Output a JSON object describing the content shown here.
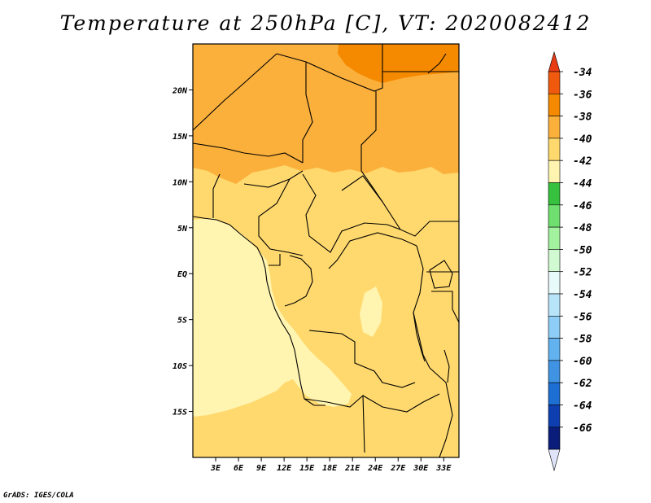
{
  "title": "Temperature at 250hPa [C], VT: 2020082412",
  "credit": "GrADS: IGES/COLA",
  "chart_data": {
    "type": "heatmap",
    "title": "Temperature at 250hPa [C], VT: 2020082412",
    "variable": "Temperature",
    "level": "250hPa",
    "units": "C",
    "valid_time": "2020082412",
    "lon_range": [
      0,
      35
    ],
    "lat_range": [
      -20,
      25
    ],
    "x_ticks": [
      "3E",
      "6E",
      "9E",
      "12E",
      "15E",
      "18E",
      "21E",
      "24E",
      "27E",
      "30E",
      "33E"
    ],
    "x_tick_values": [
      3,
      6,
      9,
      12,
      15,
      18,
      21,
      24,
      27,
      30,
      33
    ],
    "y_ticks": [
      "20N",
      "15N",
      "10N",
      "5N",
      "EQ",
      "5S",
      "10S",
      "15S"
    ],
    "y_tick_values": [
      20,
      15,
      10,
      5,
      0,
      -5,
      -10,
      -15
    ],
    "colorbar": {
      "labels": [
        "-34",
        "-36",
        "-38",
        "-40",
        "-42",
        "-44",
        "-46",
        "-48",
        "-50",
        "-52",
        "-54",
        "-56",
        "-58",
        "-60",
        "-62",
        "-64",
        "-66"
      ],
      "colors": [
        "#f05a0f",
        "#f58a00",
        "#fbb03c",
        "#ffd96e",
        "#fff5b0",
        "#36c23e",
        "#6fe070",
        "#a2f2a0",
        "#d2fad2",
        "#e8fafa",
        "#b8e4fa",
        "#8ecdf6",
        "#62b2ef",
        "#3f93e2",
        "#1e6fd4",
        "#0e3fb0",
        "#0a1d7a"
      ],
      "top_arrow_color": "#e83c14",
      "bottom_arrow_color": "#e0e4fa"
    },
    "regions": [
      {
        "range": "-36 to -34",
        "color": "#f58a00",
        "area": "far north, 20N-25N, 15E-33E"
      },
      {
        "range": "-38 to -36",
        "color": "#fbb03c",
        "area": "northern band, 9N-25N"
      },
      {
        "range": "-40 to -38",
        "color": "#ffd96e",
        "area": "central Africa, 20S-9N"
      },
      {
        "range": "-42 to -40",
        "color": "#fff5b0",
        "area": "west of the Congo coast and Angola, 20S-5N"
      }
    ]
  }
}
